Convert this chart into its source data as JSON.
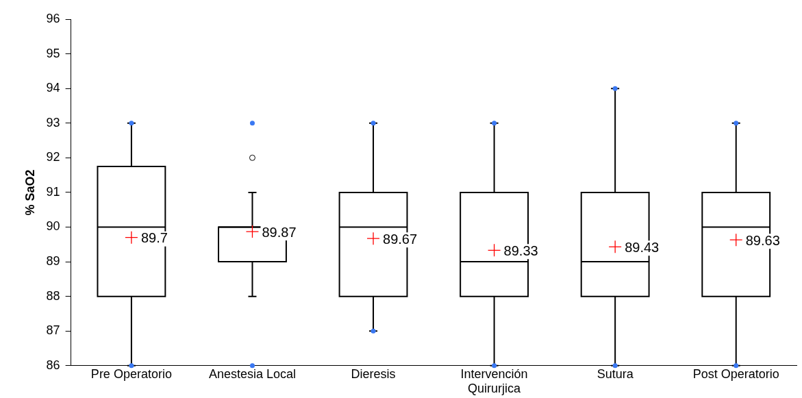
{
  "chart_data": {
    "type": "box",
    "ylabel": "% SaO2",
    "categories": [
      "Pre Operatorio",
      "Anestesia Local",
      "Dieresis",
      "Intervención Quirurjica",
      "Sutura",
      "Post Operatorio"
    ],
    "boxes": [
      {
        "low": 86,
        "q1": 88,
        "median": 90,
        "q3": 91.75,
        "high": 93,
        "mean": 89.7
      },
      {
        "low": 88,
        "q1": 89,
        "median": 90,
        "q3": 90,
        "high": 91,
        "mean": 89.87,
        "outliers": [
          92
        ]
      },
      {
        "low": 87,
        "q1": 88,
        "median": 90,
        "q3": 91,
        "high": 93,
        "mean": 89.67
      },
      {
        "low": 86,
        "q1": 88,
        "median": 89,
        "q3": 91,
        "high": 93,
        "mean": 89.33
      },
      {
        "low": 86,
        "q1": 88,
        "median": 89,
        "q3": 91,
        "high": 94,
        "mean": 89.43
      },
      {
        "low": 86,
        "q1": 88,
        "median": 90,
        "q3": 91,
        "high": 93,
        "mean": 89.63
      }
    ],
    "series": [
      {
        "type": "scatter",
        "color": "#3a78f2",
        "x": [
          "Pre Operatorio",
          "Pre Operatorio",
          "Anestesia Local",
          "Anestesia Local",
          "Dieresis",
          "Dieresis",
          "Intervención Quirurjica",
          "Intervención Quirurjica",
          "Sutura",
          "Sutura",
          "Post Operatorio",
          "Post Operatorio"
        ],
        "values": [
          86,
          93,
          86,
          93,
          87,
          93,
          86,
          93,
          86,
          94,
          86,
          93
        ]
      }
    ],
    "annotations": [
      "89.7",
      "89.87",
      "89.67",
      "89.33",
      "89.43",
      "89.63"
    ],
    "ylim": [
      86,
      96
    ],
    "yticks": [
      86,
      87,
      88,
      89,
      90,
      91,
      92,
      93,
      94,
      95,
      96
    ],
    "grid": false,
    "legend": false
  }
}
